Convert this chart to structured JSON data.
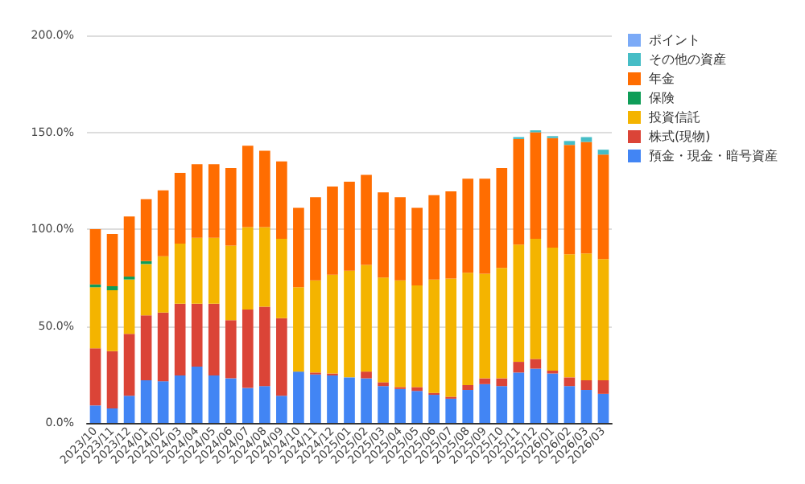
{
  "chart_data": {
    "type": "bar",
    "stacked": true,
    "categories": [
      "2023/10",
      "2023/11",
      "2023/12",
      "2024/01",
      "2024/02",
      "2024/03",
      "2024/04",
      "2024/05",
      "2024/06",
      "2024/07",
      "2024/08",
      "2024/09",
      "2024/10",
      "2024/11",
      "2024/12",
      "2025/01",
      "2025/02",
      "2025/03",
      "2025/04",
      "2025/05",
      "2025/06",
      "2025/07",
      "2025/08",
      "2025/09",
      "2025/10",
      "2025/11",
      "2025/12",
      "2026/01",
      "2026/02",
      "2026/03",
      "2026/03"
    ],
    "series": [
      {
        "name": "預金・現金・暗号資産",
        "color": "#4285f4",
        "values": [
          9,
          7.5,
          14,
          22,
          21.5,
          24.5,
          29,
          24.5,
          23,
          18,
          19,
          14,
          26.5,
          25,
          24.5,
          23.5,
          23,
          19,
          17.5,
          16.5,
          14.5,
          12.5,
          17,
          20,
          19,
          26,
          28,
          25.5,
          19,
          17,
          15
        ]
      },
      {
        "name": "株式(現物)",
        "color": "#db4437",
        "values": [
          29.5,
          29.5,
          32,
          33.5,
          35.5,
          37,
          32.5,
          37,
          30,
          40.5,
          41,
          40,
          0,
          1,
          1,
          0,
          3.5,
          2,
          1,
          2,
          1,
          1,
          2.5,
          3,
          4,
          5.5,
          5,
          1.5,
          4.5,
          5,
          7
        ]
      },
      {
        "name": "投資信託",
        "color": "#f4b400",
        "values": [
          31.5,
          31.5,
          28,
          26.5,
          29,
          31,
          34,
          34,
          38.5,
          42.5,
          41,
          41,
          43.5,
          47.5,
          51,
          55,
          55,
          54,
          55,
          52.5,
          58.5,
          61,
          58,
          54,
          57,
          60.5,
          62,
          63.5,
          63.5,
          65.5,
          62.5
        ]
      },
      {
        "name": "保険",
        "color": "#0f9d58",
        "values": [
          1.5,
          2,
          1.5,
          1.5,
          0,
          0,
          0,
          0,
          0,
          0,
          0,
          0,
          0,
          0,
          0,
          0,
          0,
          0,
          0,
          0,
          0,
          0,
          0,
          0,
          0,
          0,
          0,
          0,
          0,
          0,
          0
        ]
      },
      {
        "name": "年金",
        "color": "#ff6d01",
        "values": [
          28.5,
          27,
          31,
          32,
          34,
          36.5,
          38,
          38,
          40,
          42,
          39.5,
          40,
          41,
          43,
          45.5,
          46,
          46.5,
          44,
          43,
          40,
          43.5,
          45,
          48.5,
          49,
          51.5,
          54.5,
          55,
          56.5,
          56.5,
          57.5,
          54
        ]
      },
      {
        "name": "その他の資産",
        "color": "#46bdc6",
        "values": [
          0,
          0,
          0,
          0,
          0,
          0,
          0,
          0,
          0,
          0,
          0,
          0,
          0,
          0,
          0,
          0,
          0,
          0,
          0,
          0,
          0,
          0,
          0,
          0,
          0,
          1,
          1,
          1,
          2,
          2.5,
          2.5
        ]
      },
      {
        "name": "ポイント",
        "color": "#7baaf7",
        "values": [
          0,
          0,
          0,
          0,
          0,
          0,
          0,
          0,
          0,
          0,
          0,
          0,
          0,
          0,
          0,
          0,
          0,
          0,
          0,
          0,
          0,
          0,
          0,
          0,
          0,
          0,
          0,
          0,
          0,
          0,
          0
        ]
      }
    ],
    "ylim": [
      0,
      200
    ],
    "yticks": [
      {
        "value": 0,
        "label": "0.0%"
      },
      {
        "value": 50,
        "label": "50.0%"
      },
      {
        "value": 100,
        "label": "100.0%"
      },
      {
        "value": 150,
        "label": "150.0%"
      },
      {
        "value": 200,
        "label": "200.0%"
      }
    ],
    "grid": "y",
    "legend": "top right"
  }
}
